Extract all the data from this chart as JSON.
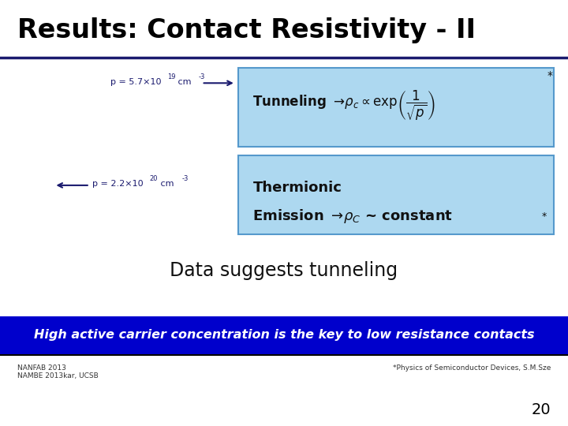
{
  "title": "Results: Contact Resistivity - II",
  "title_fontsize": 24,
  "title_color": "#000000",
  "header_line_color": "#1a1a6e",
  "bg_color": "#ffffff",
  "label_color": "#1a1a6e",
  "box_facecolor": "#add8f0",
  "box_edgecolor": "#5599cc",
  "data_suggests": "Data suggests tunneling",
  "bottom_banner_text": "High active carrier concentration is the key to low resistance contacts",
  "bottom_banner_bg": "#0000cc",
  "bottom_banner_color": "#ffffff",
  "footer_left": "NANFAB 2013\nNAMBE 2013kar, UCSB",
  "footer_right": "*Physics of Semiconductor Devices, S.M.Sze",
  "page_number": "20",
  "arrow_color": "#1a1a6e"
}
